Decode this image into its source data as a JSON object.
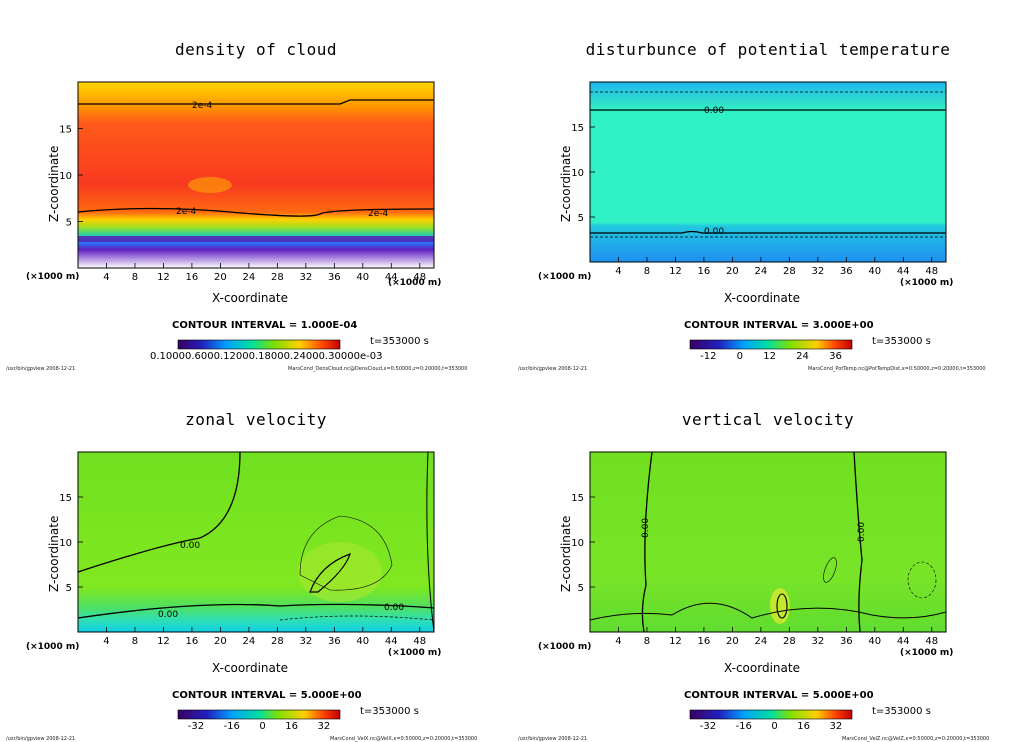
{
  "chart_data": [
    {
      "type": "heatmap",
      "title": "density of cloud",
      "xlabel": "X-coordinate",
      "ylabel": "Z-coordinate",
      "x_unit": "(×1000 m)",
      "xlim": [
        0,
        50
      ],
      "ylim": [
        0,
        20
      ],
      "xticks": [
        "4",
        "8",
        "12",
        "16",
        "20",
        "24",
        "28",
        "32",
        "36",
        "40",
        "44",
        "48"
      ],
      "yticks": [
        "5",
        "10",
        "15"
      ],
      "contour_labels": [
        "2e-4",
        "2e-4",
        "2e-4"
      ],
      "contour_interval": "CONTOUR INTERVAL = 1.000E-04",
      "time": "t=353000 s",
      "colorbar_ticks": "0.10000.6000.12000.18000.24000.30000e-03",
      "footer_left": "/usr/bin/gpview   2008-12-21",
      "footer_right": "MarsCond_DensCloud.nc@DensCloud,x=0:50000,z=0:20000,t=353000"
    },
    {
      "type": "heatmap",
      "title": "disturbunce of potential temperature",
      "xlabel": "X-coordinate",
      "ylabel": "Z-coordinate",
      "x_unit": "(×1000 m)",
      "xlim": [
        0,
        50
      ],
      "ylim": [
        0,
        20
      ],
      "xticks": [
        "4",
        "8",
        "12",
        "16",
        "20",
        "24",
        "28",
        "32",
        "36",
        "40",
        "44",
        "48"
      ],
      "yticks": [
        "5",
        "10",
        "15"
      ],
      "contour_labels": [
        "0.00",
        "0.00"
      ],
      "contour_interval": "CONTOUR INTERVAL = 3.000E+00",
      "time": "t=353000 s",
      "colorbar_ticks": [
        "-12",
        "0",
        "12",
        "24",
        "36"
      ],
      "footer_left": "/usr/bin/gpview   2008-12-21",
      "footer_right": "MarsCond_PotTemp.nc@PotTempDist,x=0:50000,z=0:20000,t=353000"
    },
    {
      "type": "heatmap",
      "title": "zonal velocity",
      "xlabel": "X-coordinate",
      "ylabel": "Z-coordinate",
      "x_unit": "(×1000 m)",
      "xlim": [
        0,
        50
      ],
      "ylim": [
        0,
        20
      ],
      "xticks": [
        "4",
        "8",
        "12",
        "16",
        "20",
        "24",
        "28",
        "32",
        "36",
        "40",
        "44",
        "48"
      ],
      "yticks": [
        "5",
        "10",
        "15"
      ],
      "contour_labels": [
        "0.00",
        "0.00",
        "0.00"
      ],
      "contour_interval": "CONTOUR INTERVAL = 5.000E+00",
      "time": "t=353000 s",
      "colorbar_ticks": [
        "-32",
        "-16",
        "0",
        "16",
        "32"
      ],
      "footer_left": "/usr/bin/gpview   2008-12-21",
      "footer_right": "MarsCond_VelX.nc@VelX,x=0:50000,z=0:20000,t=353000"
    },
    {
      "type": "heatmap",
      "title": "vertical velocity",
      "xlabel": "X-coordinate",
      "ylabel": "Z-coordinate",
      "x_unit": "(×1000 m)",
      "xlim": [
        0,
        50
      ],
      "ylim": [
        0,
        20
      ],
      "xticks": [
        "4",
        "8",
        "12",
        "16",
        "20",
        "24",
        "28",
        "32",
        "36",
        "40",
        "44",
        "48"
      ],
      "yticks": [
        "5",
        "10",
        "15"
      ],
      "contour_labels": [
        "0.00",
        "0.00"
      ],
      "contour_interval": "CONTOUR INTERVAL = 5.000E+00",
      "time": "t=353000 s",
      "colorbar_ticks": [
        "-32",
        "-16",
        "0",
        "16",
        "32"
      ],
      "footer_left": "/usr/bin/gpview   2008-12-21",
      "footer_right": "MarsCond_VelZ.nc@VelZ,x=0:50000,z=0:20000,t=353000"
    }
  ]
}
